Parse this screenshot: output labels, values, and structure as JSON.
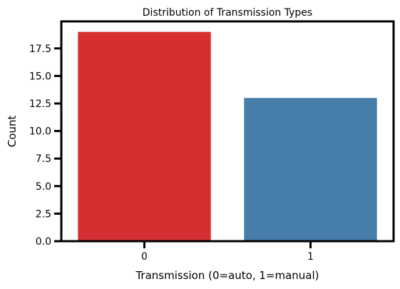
{
  "chart_data": {
    "type": "bar",
    "title": "Distribution of Transmission Types",
    "xlabel": "Transmission (0=auto, 1=manual)",
    "ylabel": "Count",
    "categories": [
      "0",
      "1"
    ],
    "values": [
      19,
      13
    ],
    "colors": [
      "#d62f31",
      "#467daa"
    ],
    "ylim": [
      0,
      19.95
    ],
    "yticks": [
      "0.0",
      "2.5",
      "5.0",
      "7.5",
      "10.0",
      "12.5",
      "15.0",
      "17.5"
    ],
    "ytick_values": [
      0,
      2.5,
      5,
      7.5,
      10,
      12.5,
      15,
      17.5
    ],
    "grid": false,
    "legend": "none"
  }
}
